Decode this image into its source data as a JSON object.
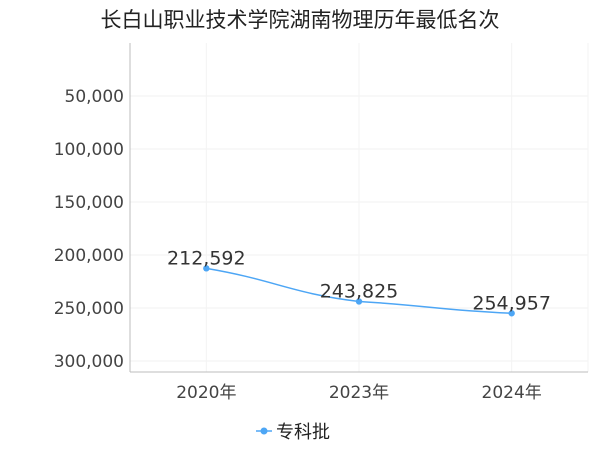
{
  "chart_data": {
    "type": "line",
    "title": "长白山职业技术学院湖南物理历年最低名次",
    "categories": [
      "2020年",
      "2023年",
      "2024年"
    ],
    "series": [
      {
        "name": "专科批",
        "values": [
          212592,
          243825,
          254957
        ],
        "labels": [
          "212,592",
          "243,825",
          "254,957"
        ],
        "color": "#4da6f5"
      }
    ],
    "y_axis": {
      "min": 0,
      "max": 310000,
      "inverted": true,
      "ticks": [
        50000,
        100000,
        150000,
        200000,
        250000,
        300000
      ],
      "tick_labels": [
        "50,000",
        "100,000",
        "150,000",
        "200,000",
        "250,000",
        "300,000"
      ]
    },
    "grid": true,
    "legend_position": "bottom-center"
  }
}
